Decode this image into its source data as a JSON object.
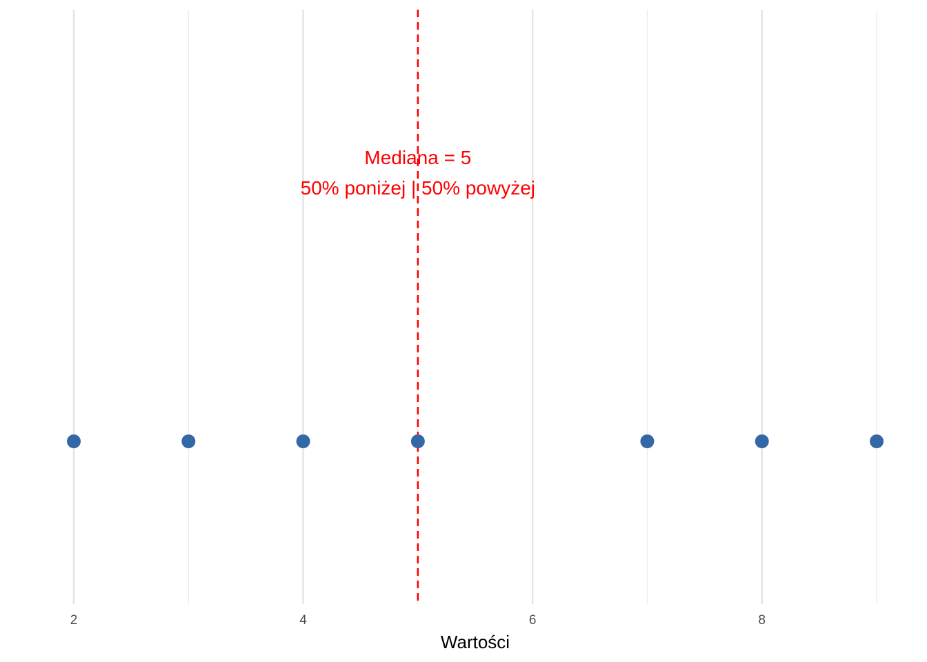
{
  "chart_data": {
    "type": "scatter",
    "title": "",
    "xlabel": "Wartości",
    "ylabel": "",
    "x": [
      2,
      3,
      4,
      5,
      7,
      8,
      9
    ],
    "y": [
      0,
      0,
      0,
      0,
      0,
      0,
      0
    ],
    "xlim": [
      2,
      9
    ],
    "x_ticks": [
      2,
      4,
      6,
      8
    ],
    "x_tick_labels": [
      "2",
      "4",
      "6",
      "8"
    ],
    "x_minor_gridlines": [
      3,
      5,
      7,
      9
    ],
    "grid": "vertical",
    "point_color": "#3467A6",
    "reference_line": {
      "x": 5,
      "style": "dashed",
      "color": "#FF0000"
    },
    "annotation": {
      "x": 5,
      "lines": [
        "Mediana = 5",
        "50% poniżej | 50% powyżej"
      ],
      "color": "#FF0000"
    }
  }
}
